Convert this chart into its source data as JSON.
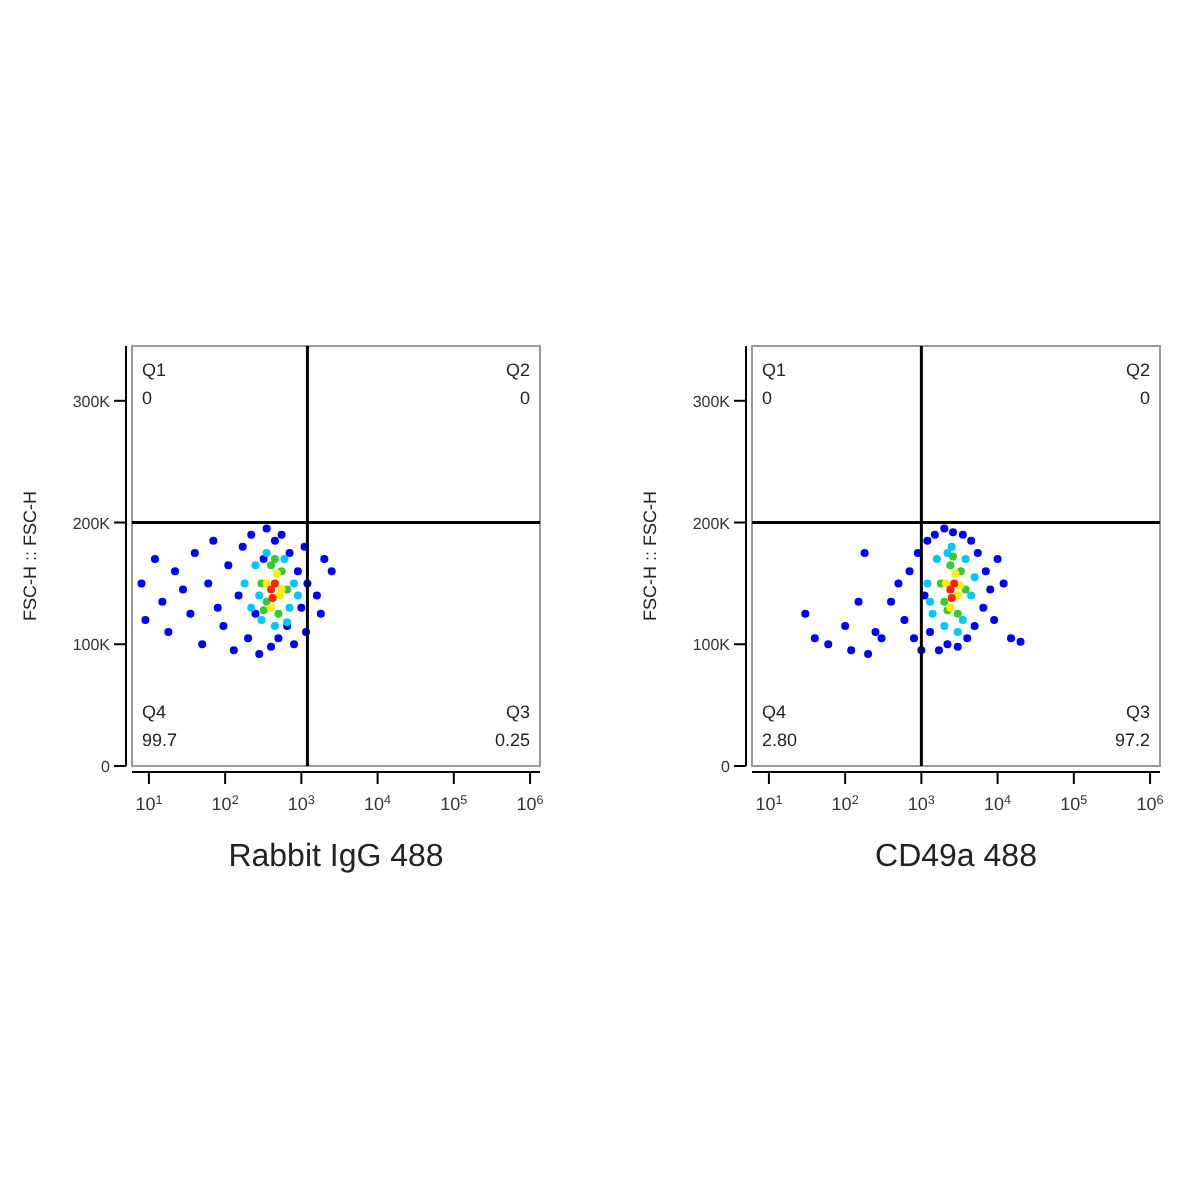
{
  "chart_data": [
    {
      "type": "scatter",
      "xlabel": "Rabbit IgG 488",
      "ylabel": "FSC-H :: FSC-H",
      "log": "x",
      "marker": "circle",
      "grid": false,
      "xlim": [
        6,
        1350000
      ],
      "ylim": [
        0,
        345000
      ],
      "xticks": [
        {
          "value": 10,
          "label": "10$^{1}$"
        },
        {
          "value": 100,
          "label": "10$^{2}$"
        },
        {
          "value": 1000,
          "label": "10$^{3}$"
        },
        {
          "value": 10000,
          "label": "10$^{4}$"
        },
        {
          "value": 100000,
          "label": "10$^{5}$"
        },
        {
          "value": 1000000,
          "label": "10$^{6}$"
        }
      ],
      "yticks": [
        0,
        {
          "value": 100000,
          "label": "100K"
        },
        {
          "value": 200000,
          "label": "200K"
        },
        {
          "value": 300000,
          "label": "300K"
        }
      ],
      "ref_lines": [
        {
          "axis": "x",
          "value": 1200,
          "color": "#000000"
        },
        {
          "axis": "y",
          "value": 200000,
          "color": "#000000"
        }
      ],
      "annotations": [
        "Q1",
        "0",
        "Q2",
        "0",
        "Q4",
        "99.7",
        "Q3",
        "0.25"
      ],
      "series": [
        {
          "color": "#0000ff",
          "x": [
            8,
            9,
            12,
            15,
            18,
            22,
            28,
            35,
            40,
            50,
            60,
            70,
            80,
            95,
            110,
            130,
            150,
            170,
            200,
            220,
            250,
            280,
            320,
            350,
            400,
            450,
            500,
            550,
            650,
            700,
            800,
            900,
            1000,
            1100,
            1150,
            1200,
            1600,
            2000,
            2500,
            1800
          ],
          "values": [
            150000,
            120000,
            170000,
            135000,
            110000,
            160000,
            145000,
            125000,
            175000,
            100000,
            150000,
            185000,
            130000,
            115000,
            165000,
            95000,
            140000,
            180000,
            105000,
            190000,
            125000,
            92000,
            170000,
            195000,
            98000,
            185000,
            105000,
            190000,
            115000,
            175000,
            100000,
            160000,
            130000,
            180000,
            110000,
            150000,
            140000,
            170000,
            160000,
            125000
          ]
        },
        {
          "color": "#00c8ff",
          "x": [
            180,
            220,
            250,
            300,
            350,
            450,
            600,
            700,
            800,
            900,
            280,
            650
          ],
          "values": [
            150000,
            130000,
            165000,
            120000,
            175000,
            115000,
            170000,
            130000,
            150000,
            140000,
            140000,
            118000
          ]
        },
        {
          "color": "#33cc33",
          "x": [
            300,
            350,
            400,
            500,
            550,
            650,
            450,
            320
          ],
          "values": [
            150000,
            135000,
            165000,
            125000,
            160000,
            145000,
            170000,
            128000
          ]
        },
        {
          "color": "#ffee00",
          "x": [
            350,
            520,
            480,
            550,
            400
          ],
          "values": [
            150000,
            140000,
            158000,
            145000,
            130000
          ]
        },
        {
          "color": "#ff2000",
          "x": [
            400,
            450,
            420
          ],
          "values": [
            145000,
            150000,
            138000
          ]
        }
      ]
    },
    {
      "type": "scatter",
      "xlabel": "CD49a 488",
      "ylabel": "FSC-H :: FSC-H",
      "log": "x",
      "marker": "circle",
      "grid": false,
      "xlim": [
        6,
        1350000
      ],
      "ylim": [
        0,
        345000
      ],
      "xticks": [
        {
          "value": 10,
          "label": "10$^{1}$"
        },
        {
          "value": 100,
          "label": "10$^{2}$"
        },
        {
          "value": 1000,
          "label": "10$^{3}$"
        },
        {
          "value": 10000,
          "label": "10$^{4}$"
        },
        {
          "value": 100000,
          "label": "10$^{5}$"
        },
        {
          "value": 1000000,
          "label": "10$^{6}$"
        }
      ],
      "yticks": [
        0,
        {
          "value": 100000,
          "label": "100K"
        },
        {
          "value": 200000,
          "label": "200K"
        },
        {
          "value": 300000,
          "label": "300K"
        }
      ],
      "ref_lines": [
        {
          "axis": "x",
          "value": 1000,
          "color": "#000000"
        },
        {
          "axis": "y",
          "value": 200000,
          "color": "#000000"
        }
      ],
      "annotations": [
        "Q1",
        "0",
        "Q2",
        "0",
        "Q4",
        "2.80",
        "Q3",
        "97.2"
      ],
      "series": [
        {
          "color": "#0000ff",
          "x": [
            400,
            500,
            600,
            700,
            800,
            900,
            1000,
            1100,
            1200,
            1300,
            1500,
            1700,
            2000,
            2200,
            2600,
            3000,
            3500,
            4000,
            4500,
            5000,
            5500,
            6500,
            7000,
            8000,
            9000,
            10000,
            12000,
            15000,
            20000,
            30,
            40,
            60,
            100,
            120,
            150,
            180,
            200,
            250,
            300
          ],
          "values": [
            135000,
            150000,
            120000,
            160000,
            105000,
            175000,
            95000,
            140000,
            185000,
            110000,
            190000,
            95000,
            195000,
            100000,
            192000,
            98000,
            190000,
            105000,
            185000,
            115000,
            175000,
            130000,
            160000,
            145000,
            120000,
            170000,
            150000,
            105000,
            102000,
            125000,
            105000,
            100000,
            115000,
            95000,
            135000,
            175000,
            92000,
            110000,
            105000
          ]
        },
        {
          "color": "#00c8ff",
          "x": [
            1200,
            1400,
            1600,
            2000,
            2500,
            3000,
            3800,
            4500,
            5000,
            1300,
            3500,
            2200
          ],
          "values": [
            150000,
            125000,
            170000,
            115000,
            180000,
            110000,
            170000,
            140000,
            155000,
            135000,
            120000,
            175000
          ]
        },
        {
          "color": "#33cc33",
          "x": [
            1800,
            2000,
            2400,
            3000,
            3300,
            3800,
            2600,
            2200
          ],
          "values": [
            150000,
            135000,
            165000,
            125000,
            160000,
            145000,
            172000,
            128000
          ]
        },
        {
          "color": "#ffee00",
          "x": [
            2100,
            3000,
            2800,
            3200,
            2400
          ],
          "values": [
            150000,
            140000,
            158000,
            148000,
            130000
          ]
        },
        {
          "color": "#ff2000",
          "x": [
            2400,
            2700,
            2500
          ],
          "values": [
            145000,
            150000,
            138000
          ]
        }
      ]
    }
  ]
}
